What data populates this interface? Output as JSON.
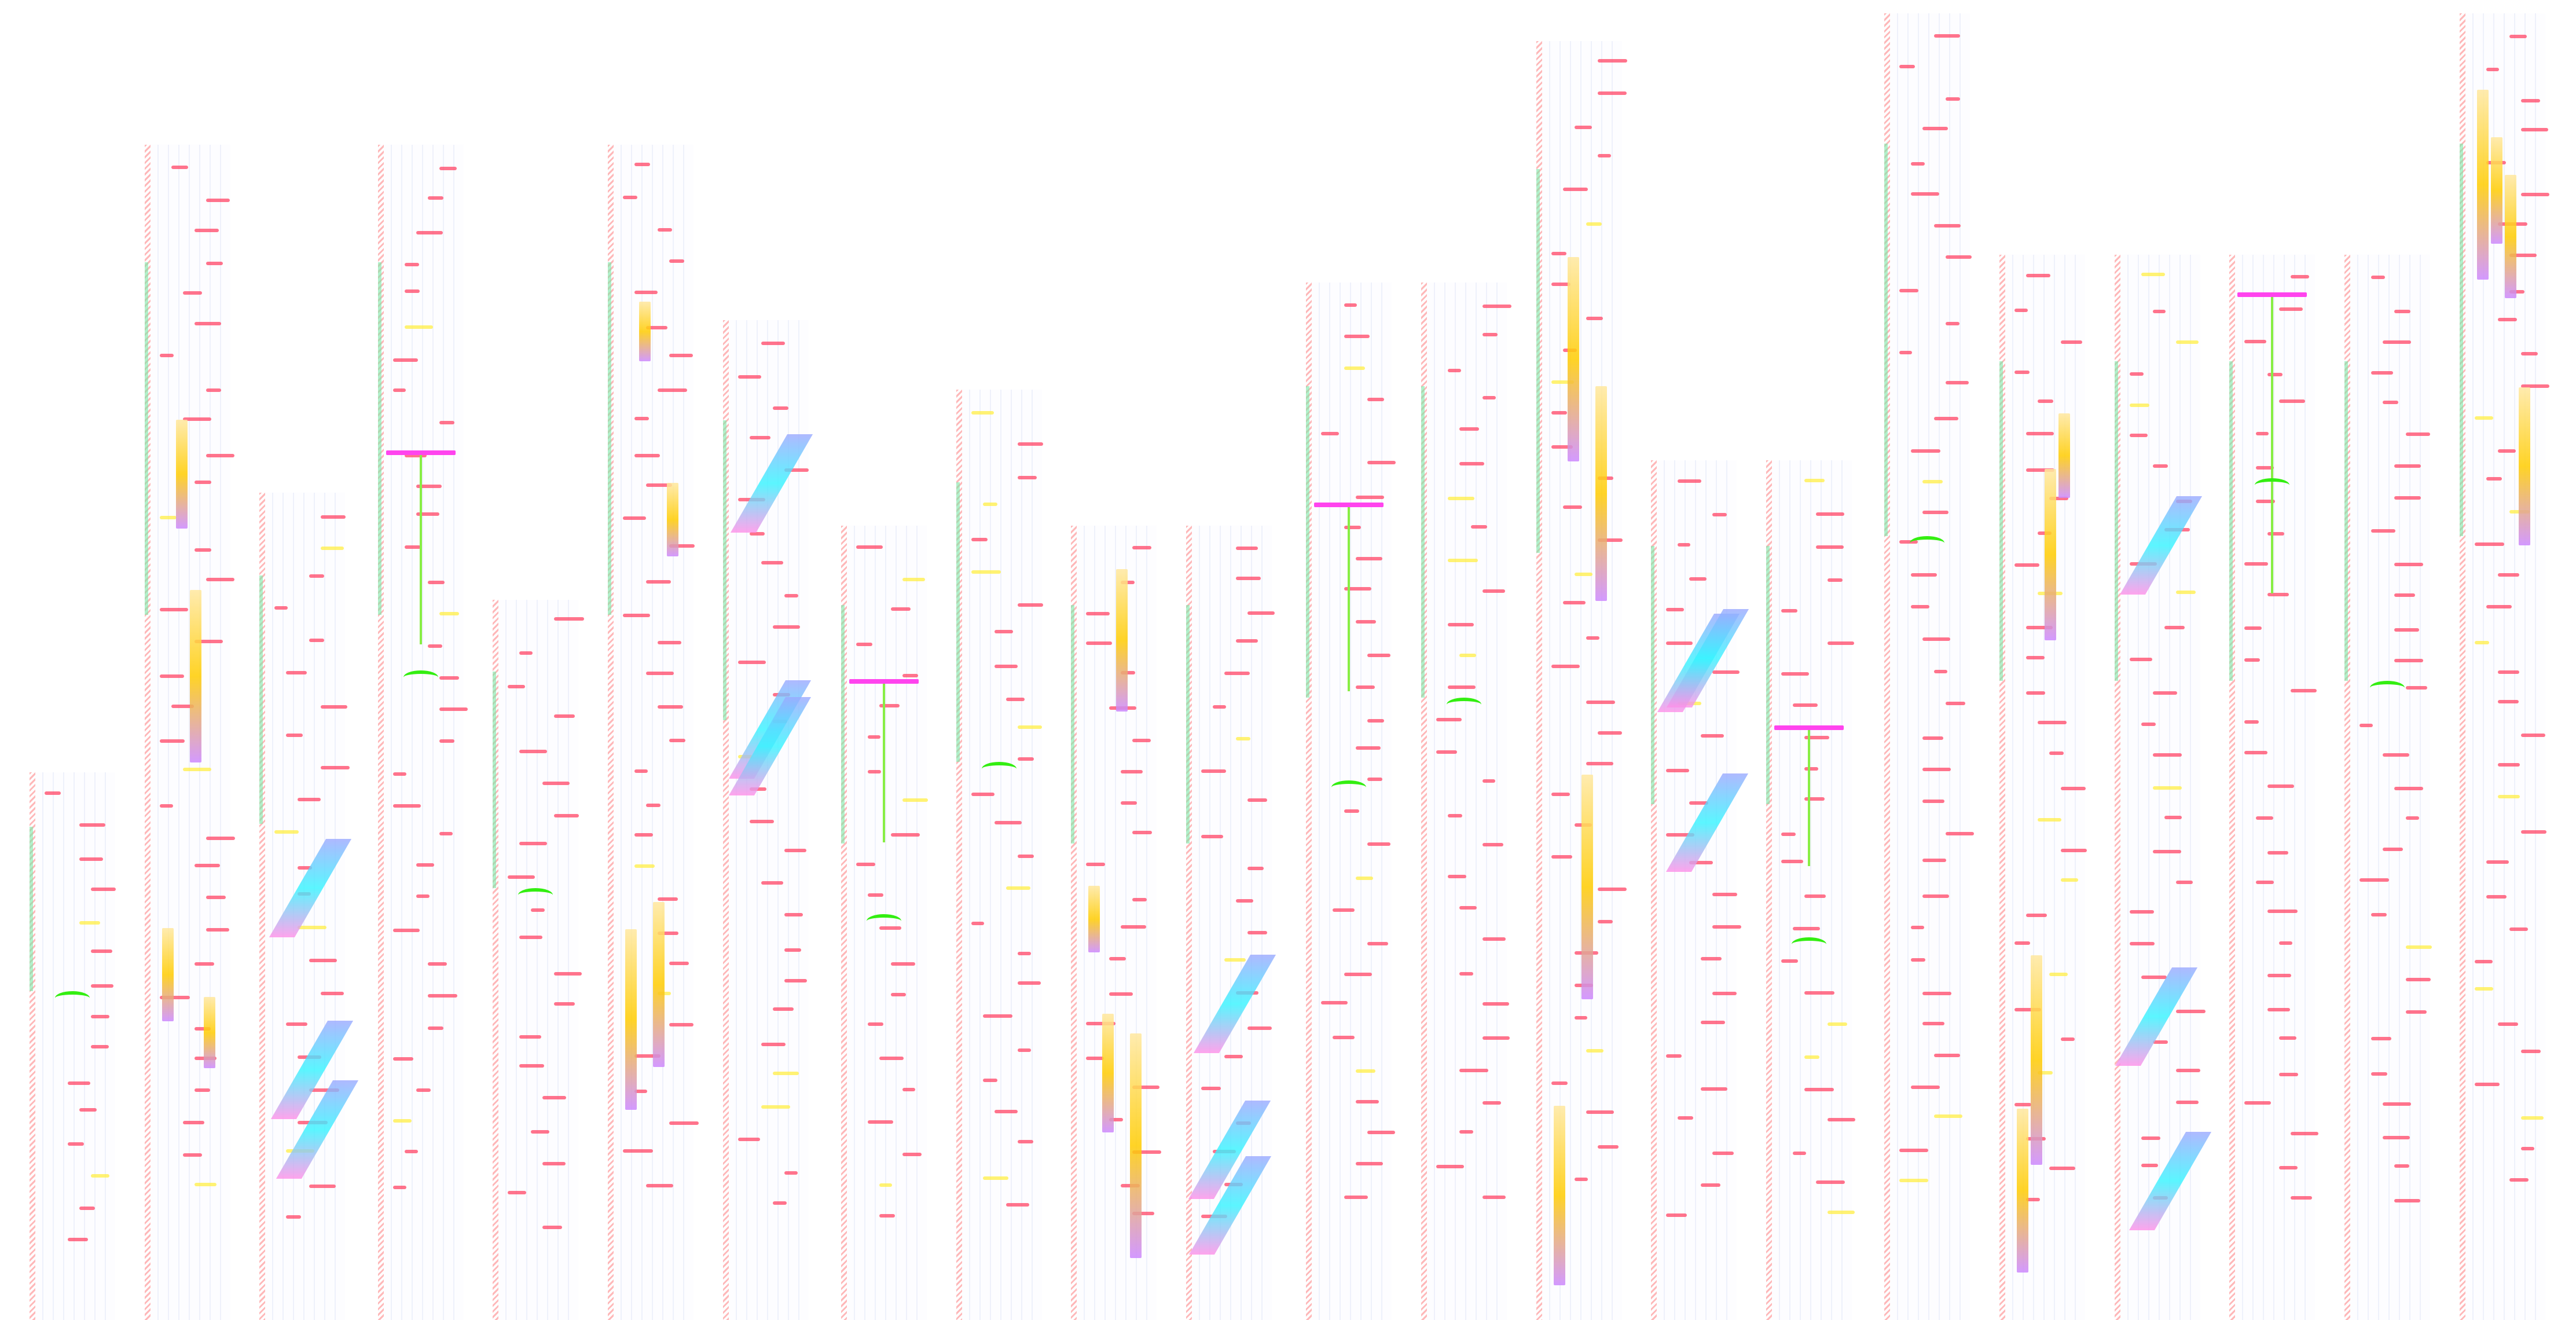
{
  "colors": {
    "note": "#ff4466",
    "beat_note": "#ffee44",
    "hold_body": "#ffe8a0",
    "hold_active": "#ffcc00",
    "slide": "#33f4ff",
    "connector": "#88ee44",
    "accent": "#ff44ee",
    "arc": "#33ee11"
  }
}
